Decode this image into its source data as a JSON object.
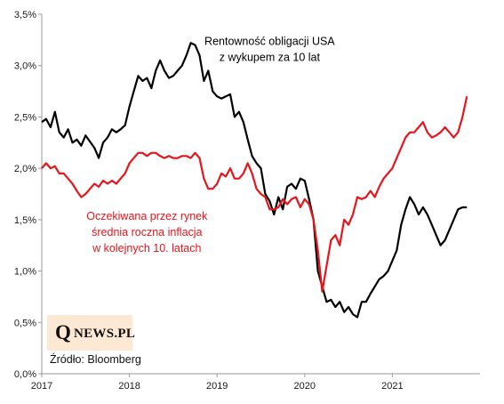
{
  "chart_data": {
    "type": "line",
    "title": "",
    "xlabel": "",
    "ylabel": "",
    "xlim": [
      2017.0,
      2022.0
    ],
    "ylim": [
      0.0,
      3.5
    ],
    "x_ticks": [
      {
        "value": 2017,
        "label": "2017"
      },
      {
        "value": 2018,
        "label": "2018"
      },
      {
        "value": 2019,
        "label": "2019"
      },
      {
        "value": 2020,
        "label": "2020"
      },
      {
        "value": 2021,
        "label": "2021"
      }
    ],
    "y_ticks": [
      {
        "value": 0.0,
        "label": "0,0%"
      },
      {
        "value": 0.5,
        "label": "0,5%"
      },
      {
        "value": 1.0,
        "label": "1,0%"
      },
      {
        "value": 1.5,
        "label": "1,5%"
      },
      {
        "value": 2.0,
        "label": "2,0%"
      },
      {
        "value": 2.5,
        "label": "2,5%"
      },
      {
        "value": 3.0,
        "label": "3,0%"
      },
      {
        "value": 3.5,
        "label": "3,5%"
      }
    ],
    "grid": false,
    "series": [
      {
        "name": "Rentowność obligacji USA z wykupem za 10 lat",
        "color": "#000000",
        "x": [
          2017.0,
          2017.05,
          2017.1,
          2017.15,
          2017.2,
          2017.25,
          2017.3,
          2017.35,
          2017.4,
          2017.45,
          2017.5,
          2017.55,
          2017.6,
          2017.65,
          2017.7,
          2017.75,
          2017.8,
          2017.85,
          2017.9,
          2017.95,
          2018.0,
          2018.05,
          2018.1,
          2018.15,
          2018.2,
          2018.25,
          2018.3,
          2018.35,
          2018.4,
          2018.45,
          2018.5,
          2018.55,
          2018.6,
          2018.65,
          2018.7,
          2018.75,
          2018.8,
          2018.85,
          2018.9,
          2018.95,
          2019.0,
          2019.05,
          2019.1,
          2019.15,
          2019.2,
          2019.25,
          2019.3,
          2019.35,
          2019.4,
          2019.45,
          2019.5,
          2019.55,
          2019.6,
          2019.65,
          2019.7,
          2019.75,
          2019.8,
          2019.85,
          2019.9,
          2019.95,
          2020.0,
          2020.05,
          2020.1,
          2020.15,
          2020.2,
          2020.25,
          2020.3,
          2020.35,
          2020.4,
          2020.45,
          2020.5,
          2020.55,
          2020.6,
          2020.65,
          2020.7,
          2020.75,
          2020.8,
          2020.85,
          2020.9,
          2020.95,
          2021.0,
          2021.05,
          2021.1,
          2021.15,
          2021.2,
          2021.25,
          2021.3,
          2021.35,
          2021.4,
          2021.45,
          2021.5,
          2021.55,
          2021.6,
          2021.65,
          2021.7,
          2021.75,
          2021.8,
          2021.85
        ],
        "y": [
          2.45,
          2.48,
          2.4,
          2.55,
          2.35,
          2.3,
          2.38,
          2.25,
          2.28,
          2.22,
          2.32,
          2.26,
          2.2,
          2.1,
          2.25,
          2.3,
          2.38,
          2.35,
          2.38,
          2.42,
          2.6,
          2.75,
          2.9,
          2.85,
          2.88,
          2.78,
          2.95,
          3.05,
          2.95,
          2.88,
          2.9,
          2.95,
          3.0,
          3.1,
          3.22,
          3.2,
          3.1,
          2.85,
          2.95,
          2.75,
          2.7,
          2.68,
          2.7,
          2.72,
          2.5,
          2.55,
          2.45,
          2.28,
          2.12,
          2.05,
          2.0,
          1.75,
          1.68,
          1.55,
          1.72,
          1.6,
          1.82,
          1.85,
          1.8,
          1.9,
          1.88,
          1.7,
          1.5,
          1.0,
          0.85,
          0.7,
          0.72,
          0.65,
          0.7,
          0.6,
          0.65,
          0.58,
          0.55,
          0.7,
          0.7,
          0.78,
          0.85,
          0.92,
          0.95,
          1.0,
          1.1,
          1.2,
          1.45,
          1.6,
          1.72,
          1.65,
          1.55,
          1.62,
          1.55,
          1.45,
          1.35,
          1.25,
          1.3,
          1.4,
          1.5,
          1.6,
          1.62,
          1.62
        ]
      },
      {
        "name": "Oczekiwana przez rynek średnia roczna inflacja w kolejnych 10. latach",
        "color": "#e8141b",
        "x": [
          2017.0,
          2017.05,
          2017.1,
          2017.15,
          2017.2,
          2017.25,
          2017.3,
          2017.35,
          2017.4,
          2017.45,
          2017.5,
          2017.55,
          2017.6,
          2017.65,
          2017.7,
          2017.75,
          2017.8,
          2017.85,
          2017.9,
          2017.95,
          2018.0,
          2018.05,
          2018.1,
          2018.15,
          2018.2,
          2018.25,
          2018.3,
          2018.35,
          2018.4,
          2018.45,
          2018.5,
          2018.55,
          2018.6,
          2018.65,
          2018.7,
          2018.75,
          2018.8,
          2018.85,
          2018.9,
          2018.95,
          2019.0,
          2019.05,
          2019.1,
          2019.15,
          2019.2,
          2019.25,
          2019.3,
          2019.35,
          2019.4,
          2019.45,
          2019.5,
          2019.55,
          2019.6,
          2019.65,
          2019.7,
          2019.75,
          2019.8,
          2019.85,
          2019.9,
          2019.95,
          2020.0,
          2020.05,
          2020.1,
          2020.15,
          2020.2,
          2020.25,
          2020.3,
          2020.35,
          2020.4,
          2020.45,
          2020.5,
          2020.55,
          2020.6,
          2020.65,
          2020.7,
          2020.75,
          2020.8,
          2020.85,
          2020.9,
          2020.95,
          2021.0,
          2021.05,
          2021.1,
          2021.15,
          2021.2,
          2021.25,
          2021.3,
          2021.35,
          2021.4,
          2021.45,
          2021.5,
          2021.55,
          2021.6,
          2021.65,
          2021.7,
          2021.75,
          2021.8,
          2021.85
        ],
        "y": [
          2.0,
          2.05,
          2.0,
          2.02,
          1.95,
          1.95,
          1.9,
          1.85,
          1.78,
          1.72,
          1.75,
          1.8,
          1.85,
          1.82,
          1.88,
          1.85,
          1.88,
          1.85,
          1.9,
          1.95,
          2.05,
          2.1,
          2.15,
          2.15,
          2.12,
          2.15,
          2.15,
          2.12,
          2.1,
          2.12,
          2.1,
          2.1,
          2.12,
          2.12,
          2.1,
          2.15,
          2.1,
          1.9,
          1.8,
          1.8,
          1.85,
          1.95,
          1.92,
          2.0,
          1.9,
          1.9,
          1.95,
          2.05,
          1.95,
          1.8,
          1.75,
          1.72,
          1.6,
          1.6,
          1.62,
          1.7,
          1.65,
          1.7,
          1.72,
          1.62,
          1.7,
          1.65,
          1.5,
          1.2,
          0.8,
          1.05,
          1.3,
          1.35,
          1.25,
          1.5,
          1.45,
          1.55,
          1.72,
          1.7,
          1.72,
          1.78,
          1.72,
          1.82,
          1.9,
          1.95,
          2.0,
          2.1,
          2.2,
          2.3,
          2.35,
          2.35,
          2.4,
          2.45,
          2.35,
          2.3,
          2.32,
          2.35,
          2.4,
          2.35,
          2.3,
          2.35,
          2.5,
          2.7
        ]
      }
    ],
    "annotations": [
      {
        "series": 0,
        "lines": [
          "Rentowność obligacji USA",
          "z wykupem za 10 lat"
        ],
        "color": "#000000",
        "at": [
          2019.6,
          3.2
        ]
      },
      {
        "series": 1,
        "lines": [
          "Oczekiwana przez rynek",
          "średnia roczna inflacja",
          "w kolejnych 10. latach"
        ],
        "color": "#e8141b",
        "at": [
          2018.2,
          1.5
        ]
      }
    ]
  },
  "logo": {
    "q": "Q",
    "rest": "NEWS.PL"
  },
  "source": "Źródło: Bloomberg"
}
